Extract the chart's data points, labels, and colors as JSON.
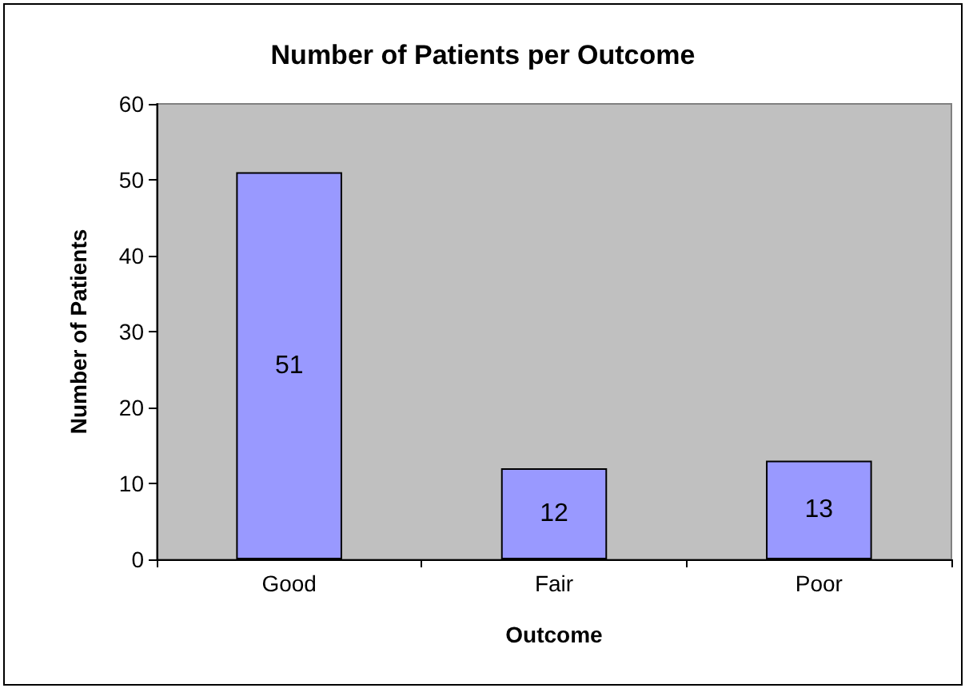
{
  "chart_data": {
    "type": "bar",
    "title": "Number of Patients per Outcome",
    "xlabel": "Outcome",
    "ylabel": "Number of Patients",
    "categories": [
      "Good",
      "Fair",
      "Poor"
    ],
    "values": [
      51,
      12,
      13
    ],
    "color": "#9999ff",
    "ylim": [
      0,
      60
    ],
    "yticks": [
      0,
      10,
      20,
      30,
      40,
      50,
      60
    ],
    "grid": false,
    "data_labels": true
  }
}
